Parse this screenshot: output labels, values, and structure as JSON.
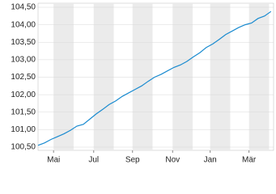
{
  "chart_data": {
    "type": "line",
    "x": [
      0,
      10,
      20,
      30,
      40,
      50,
      60,
      70,
      80,
      90,
      100,
      110,
      120,
      130,
      140,
      150,
      160,
      170,
      180,
      190,
      200,
      210,
      220,
      230,
      240,
      250,
      260,
      270,
      280,
      290,
      300,
      310,
      320,
      330,
      340,
      350,
      360
    ],
    "series": [
      {
        "color": "#1a8bd0",
        "values": [
          100.55,
          100.62,
          100.72,
          100.8,
          100.88,
          100.98,
          101.1,
          101.15,
          101.3,
          101.45,
          101.58,
          101.72,
          101.82,
          101.95,
          102.05,
          102.15,
          102.25,
          102.38,
          102.5,
          102.58,
          102.68,
          102.78,
          102.85,
          102.95,
          103.08,
          103.2,
          103.35,
          103.45,
          103.58,
          103.72,
          103.82,
          103.92,
          104.0,
          104.05,
          104.18,
          104.25,
          104.38
        ]
      }
    ],
    "xlim": [
      0,
      364
    ],
    "xticks": [
      {
        "value": 24,
        "label": "Mai"
      },
      {
        "value": 86,
        "label": "Jul"
      },
      {
        "value": 146,
        "label": "Sep"
      },
      {
        "value": 208,
        "label": "Nov"
      },
      {
        "value": 266,
        "label": "Jan"
      },
      {
        "value": 326,
        "label": "Mär"
      }
    ],
    "ylim": [
      100.5,
      104.5
    ],
    "yticks": [
      {
        "value": 100.5,
        "label": "100,50"
      },
      {
        "value": 101,
        "label": "101,00"
      },
      {
        "value": 101.5,
        "label": "101,50"
      },
      {
        "value": 102,
        "label": "102,00"
      },
      {
        "value": 102.5,
        "label": "102,50"
      },
      {
        "value": 103,
        "label": "103,00"
      },
      {
        "value": 103.5,
        "label": "103,50"
      },
      {
        "value": 104,
        "label": "104,00"
      },
      {
        "value": 104.5,
        "label": "104,50"
      }
    ],
    "grid": true
  }
}
